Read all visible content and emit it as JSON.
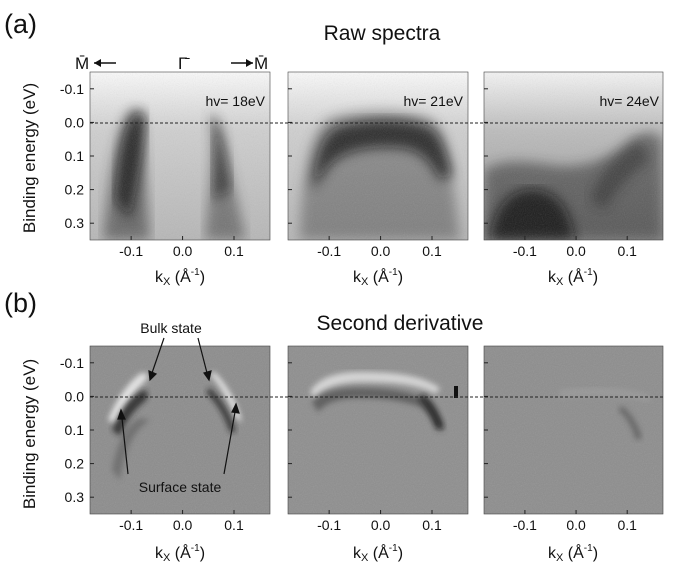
{
  "figure": {
    "panel_a": {
      "letter": "(a)",
      "title": "Raw spectra",
      "hv_labels": [
        "hv= 18eV",
        "hv= 21eV",
        "hv= 24eV"
      ],
      "kpoint_labels": {
        "m_left": "M̄",
        "gamma": "Γ̄",
        "m_right": "M̄"
      }
    },
    "panel_b": {
      "letter": "(b)",
      "title": "Second derivative",
      "annotations": {
        "bulk": "Bulk state",
        "surface": "Surface state"
      }
    },
    "axes": {
      "ylabel": "Binding energy (eV)",
      "xlabel_main": "k",
      "xlabel_sub": "X",
      "xlabel_unit": " (Å",
      "xlabel_exp": "-1",
      "xlabel_close": ")",
      "y_ticks": [
        "-0.1",
        "0.0",
        "0.1",
        "0.2",
        "0.3"
      ],
      "x_ticks": [
        "-0.1",
        "0.0",
        "0.1"
      ]
    }
  },
  "chart_data": [
    {
      "type": "heatmap",
      "panel": "a",
      "title": "Raw spectra",
      "subplots": [
        "hv= 18eV",
        "hv= 21eV",
        "hv= 24eV"
      ],
      "xlabel": "kX (Å-1)",
      "ylabel": "Binding energy (eV)",
      "xlim": [
        -0.18,
        0.17
      ],
      "ylim": [
        -0.15,
        0.35
      ],
      "x_ticks": [
        -0.1,
        0.0,
        0.1
      ],
      "y_ticks": [
        -0.1,
        0.0,
        0.1,
        0.2,
        0.3
      ],
      "fermi_level_dashed_line": 0.0,
      "colormap": "grayscale"
    },
    {
      "type": "heatmap",
      "panel": "b",
      "title": "Second derivative",
      "xlabel": "kX (Å-1)",
      "ylabel": "Binding energy (eV)",
      "xlim": [
        -0.18,
        0.17
      ],
      "ylim": [
        -0.15,
        0.35
      ],
      "x_ticks": [
        -0.1,
        0.0,
        0.1
      ],
      "y_ticks": [
        -0.1,
        0.0,
        0.1,
        0.2,
        0.3
      ],
      "fermi_level_dashed_line": 0.0,
      "annotations": [
        "Bulk state",
        "Surface state"
      ],
      "colormap": "grayscale"
    }
  ]
}
